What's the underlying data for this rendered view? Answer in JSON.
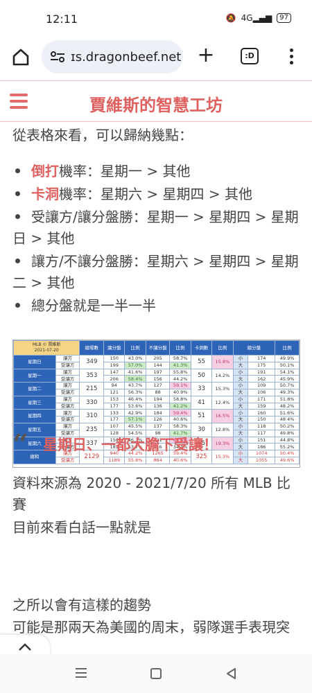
{
  "status_bar": {
    "time": "12:11",
    "signal_label": "4G",
    "battery": "97"
  },
  "browser": {
    "url": "ɪs.dragonbeef.net",
    "tabs_count": ":D"
  },
  "site": {
    "title": "賈維斯的智慧工坊"
  },
  "article": {
    "intro": "從表格來看，可以歸納幾點：",
    "bullets": [
      {
        "highlight": "倒打",
        "text": "機率：星期一 > 其他"
      },
      {
        "highlight": "卡洞",
        "text": "機率：星期六 > 星期四 > 其他"
      },
      {
        "highlight": "",
        "text": "受讓方/讓分盤勝：星期一 > 星期四 > 星期日 > 其他"
      },
      {
        "highlight": "",
        "text": "讓方/不讓分盤勝：星期六 > 星期四 > 星期二 > 其他"
      },
      {
        "highlight": "",
        "text": "總分盤就是一半一半"
      }
    ],
    "source_note": "資料來源為 2020 - 2021/7/20 所有 MLB 比賽",
    "plain_talk": "目前來看白話一點就是",
    "quote": "星期日、一都大膽下受讓！",
    "reason_1": "之所以會有這樣的趨勢",
    "reason_2": "可能是那兩天為美國的周末，弱隊選手表現突出"
  },
  "stats_table": {
    "corner_title": "MLB © 賈維斯",
    "corner_date": "2021-07-20",
    "headers": [
      "總場數",
      "讓分盤",
      "比例",
      "不讓分盤",
      "比例",
      "卡洞數",
      "比例",
      "總分盤",
      "比例"
    ],
    "rows": [
      {
        "day": "星期日",
        "total": "349",
        "dig": "55",
        "dig_pct": "15.8%",
        "a": {
          "side": "讓方",
          "spread": "150",
          "sp": "43.0%",
          "ns": "205",
          "nsp": "58.7%",
          "ou": "小",
          "ouv": "174",
          "oup": "49.9%"
        },
        "b": {
          "side": "受讓方",
          "spread": "199",
          "sp": "57.0%",
          "ns": "144",
          "nsp": "41.3%",
          "ou": "大",
          "ouv": "175",
          "oup": "50.1%"
        }
      },
      {
        "day": "星期一",
        "total": "353",
        "dig": "50",
        "dig_pct": "14.2%",
        "a": {
          "side": "讓方",
          "spread": "147",
          "sp": "41.6%",
          "ns": "197",
          "nsp": "55.8%",
          "ou": "小",
          "ouv": "191",
          "oup": "54.1%"
        },
        "b": {
          "side": "受讓方",
          "spread": "206",
          "sp": "58.4%",
          "ns": "156",
          "nsp": "44.2%",
          "ou": "大",
          "ouv": "162",
          "oup": "45.9%"
        }
      },
      {
        "day": "星期二",
        "total": "215",
        "dig": "33",
        "dig_pct": "15.3%",
        "a": {
          "side": "讓方",
          "spread": "94",
          "sp": "43.7%",
          "ns": "127",
          "nsp": "59.1%",
          "ou": "小",
          "ouv": "109",
          "oup": "50.7%"
        },
        "b": {
          "side": "受讓方",
          "spread": "121",
          "sp": "56.3%",
          "ns": "88",
          "nsp": "40.9%",
          "ou": "大",
          "ouv": "106",
          "oup": "49.3%"
        }
      },
      {
        "day": "星期三",
        "total": "330",
        "dig": "41",
        "dig_pct": "12.4%",
        "a": {
          "side": "讓方",
          "spread": "153",
          "sp": "46.4%",
          "ns": "194",
          "nsp": "58.8%",
          "ou": "小",
          "ouv": "171",
          "oup": "51.8%"
        },
        "b": {
          "side": "受讓方",
          "spread": "177",
          "sp": "53.6%",
          "ns": "136",
          "nsp": "41.2%",
          "ou": "大",
          "ouv": "159",
          "oup": "48.2%"
        }
      },
      {
        "day": "星期四",
        "total": "310",
        "dig": "51",
        "dig_pct": "16.5%",
        "a": {
          "side": "讓方",
          "spread": "133",
          "sp": "42.9%",
          "ns": "184",
          "nsp": "59.4%",
          "ou": "小",
          "ouv": "160",
          "oup": "51.6%"
        },
        "b": {
          "side": "受讓方",
          "spread": "177",
          "sp": "57.1%",
          "ns": "126",
          "nsp": "40.6%",
          "ou": "大",
          "ouv": "150",
          "oup": "48.4%"
        }
      },
      {
        "day": "星期五",
        "total": "235",
        "dig": "30",
        "dig_pct": "12.8%",
        "a": {
          "side": "讓方",
          "spread": "107",
          "sp": "45.5%",
          "ns": "137",
          "nsp": "58.3%",
          "ou": "小",
          "ouv": "118",
          "oup": "50.2%"
        },
        "b": {
          "side": "受讓方",
          "spread": "128",
          "sp": "54.5%",
          "ns": "98",
          "nsp": "41.7%",
          "ou": "大",
          "ouv": "117",
          "oup": "49.8%"
        }
      },
      {
        "day": "星期六",
        "total": "337",
        "dig": "65",
        "dig_pct": "19.3%",
        "a": {
          "side": "讓方",
          "spread": "156",
          "sp": "46.3%",
          "ns": "221",
          "nsp": "65.6%",
          "ou": "小",
          "ouv": "151",
          "oup": "44.8%"
        },
        "b": {
          "side": "受讓方",
          "spread": "181",
          "sp": "53.7%",
          "ns": "116",
          "nsp": "34.4%",
          "ou": "大",
          "ouv": "186",
          "oup": "55.2%"
        }
      },
      {
        "day": "總和",
        "total": "2129",
        "dig": "325",
        "dig_pct": "15.3%",
        "a": {
          "side": "讓方",
          "spread": "940",
          "sp": "44.2%",
          "ns": "1265",
          "nsp": "59.4%",
          "ou": "小",
          "ouv": "1074",
          "oup": "50.4%"
        },
        "b": {
          "side": "受讓方",
          "spread": "1189",
          "sp": "55.8%",
          "ns": "864",
          "nsp": "40.6%",
          "ou": "大",
          "ouv": "1055",
          "oup": "49.6%"
        }
      }
    ]
  },
  "colors": {
    "accent": "#e06060",
    "table_header": "#2e64b7",
    "highlight_green": "#cfeac8",
    "highlight_pink": "#f7cfe3"
  }
}
